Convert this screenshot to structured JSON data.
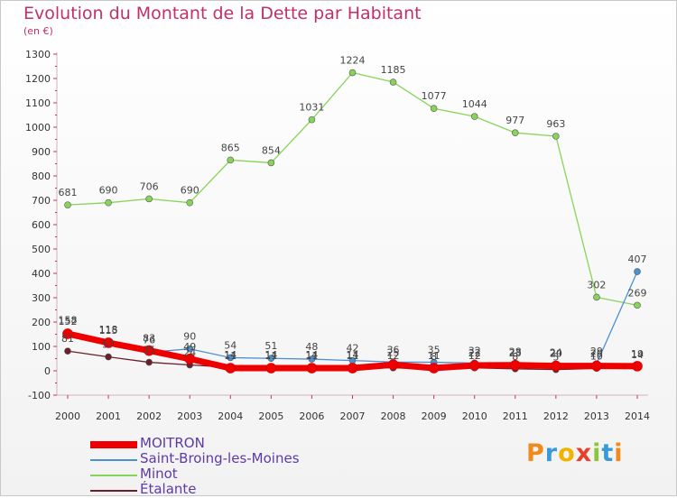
{
  "chart_data": {
    "type": "line",
    "title": "Evolution du Montant de la Dette par Habitant",
    "subtitle": "(en €)",
    "categories": [
      "2000",
      "2001",
      "2002",
      "2003",
      "2004",
      "2005",
      "2006",
      "2007",
      "2008",
      "2009",
      "2010",
      "2011",
      "2012",
      "2013",
      "2014"
    ],
    "ylim": [
      -100,
      1300
    ],
    "yticks": [
      -100,
      0,
      100,
      200,
      300,
      400,
      500,
      600,
      700,
      800,
      900,
      1000,
      1100,
      1200,
      1300
    ],
    "grid": false,
    "legend_position": "bottom-left",
    "series": [
      {
        "name": "MOITRON",
        "color": "#ee0000",
        "style": "thick",
        "values": [
          152,
          115,
          83,
          49,
          11,
          11,
          11,
          11,
          25,
          11,
          22,
          23,
          20,
          20,
          19
        ],
        "labels": [
          "152",
          "115",
          "83",
          "49",
          "11",
          "11",
          "11",
          "11",
          "25",
          "11",
          "22",
          "23",
          "20",
          "20",
          "19"
        ]
      },
      {
        "name": "Saint-Broing-les-Moines",
        "color": "#4d90d0",
        "style": "thin",
        "values": [
          158,
          118,
          76,
          90,
          54,
          51,
          48,
          42,
          36,
          35,
          32,
          28,
          24,
          29,
          407
        ],
        "labels": [
          "158",
          "118",
          "76",
          "90",
          "54",
          "51",
          "48",
          "42",
          "36",
          "35",
          "32",
          "28",
          "24",
          "29",
          "407"
        ]
      },
      {
        "name": "Minot",
        "color": "#88d45a",
        "style": "thin",
        "values": [
          681,
          690,
          706,
          690,
          865,
          854,
          1031,
          1224,
          1185,
          1077,
          1044,
          977,
          963,
          302,
          269
        ],
        "labels": [
          "681",
          "690",
          "706",
          "690",
          "865",
          "854",
          "1031",
          "1224",
          "1185",
          "1077",
          "1044",
          "977",
          "963",
          "302",
          "269"
        ]
      },
      {
        "name": "Étalante",
        "color": "#6b1f2a",
        "style": "thin",
        "values": [
          81,
          57,
          35,
          24,
          14,
          14,
          14,
          14,
          12,
          8,
          12,
          8,
          5,
          10,
          14
        ],
        "labels": [
          "81",
          "57",
          "35",
          "24",
          "14",
          "14",
          "14",
          "14",
          "12",
          "8",
          "12",
          "8",
          "5",
          "10",
          "14"
        ]
      }
    ]
  },
  "logo": {
    "text": "Proxiti",
    "colors": [
      "#f08a1c",
      "#3a9ad9",
      "#f0b400",
      "#e8402a",
      "#8cc63f",
      "#3a9ad9",
      "#f08a1c"
    ]
  }
}
